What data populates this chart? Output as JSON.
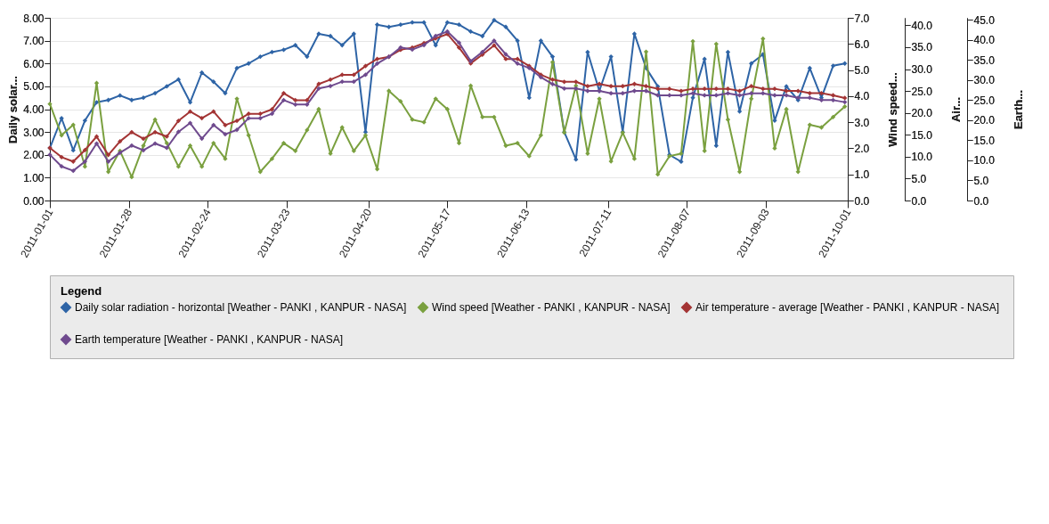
{
  "chart_data": [
    {
      "type": "line",
      "x": [
        "2011-01-01",
        "2011-01-05",
        "2011-01-09",
        "2011-01-13",
        "2011-01-17",
        "2011-01-21",
        "2011-01-25",
        "2011-01-29",
        "2011-02-02",
        "2011-02-06",
        "2011-02-10",
        "2011-02-14",
        "2011-02-18",
        "2011-02-22",
        "2011-02-26",
        "2011-03-02",
        "2011-03-06",
        "2011-03-10",
        "2011-03-14",
        "2011-03-18",
        "2011-03-22",
        "2011-03-26",
        "2011-03-30",
        "2011-04-03",
        "2011-04-07",
        "2011-04-11",
        "2011-04-15",
        "2011-04-19",
        "2011-04-23",
        "2011-04-27",
        "2011-05-01",
        "2011-05-05",
        "2011-05-09",
        "2011-05-13",
        "2011-05-17",
        "2011-05-21",
        "2011-05-25",
        "2011-05-29",
        "2011-06-02",
        "2011-06-06",
        "2011-06-10",
        "2011-06-14",
        "2011-06-18",
        "2011-06-22",
        "2011-06-26",
        "2011-06-30",
        "2011-07-04",
        "2011-07-08",
        "2011-07-12",
        "2011-07-16",
        "2011-07-20",
        "2011-07-24",
        "2011-07-28",
        "2011-08-01",
        "2011-08-05",
        "2011-08-09",
        "2011-08-13",
        "2011-08-17",
        "2011-08-21",
        "2011-08-25",
        "2011-08-29",
        "2011-09-02",
        "2011-09-06",
        "2011-09-10",
        "2011-09-14",
        "2011-09-18",
        "2011-09-22",
        "2011-09-26",
        "2011-09-30"
      ],
      "xlim": [
        "2011-01-01",
        "2011-10-01"
      ],
      "xticks": [
        "2011-01-01",
        "2011-01-28",
        "2011-02-24",
        "2011-03-23",
        "2011-04-20",
        "2011-05-17",
        "2011-06-13",
        "2011-07-11",
        "2011-08-07",
        "2011-09-03",
        "2011-10-01"
      ],
      "ylabel": "Daily solar...",
      "y2label": "Wind speed...",
      "y3label": "Air...",
      "ylim": [
        0,
        8
      ],
      "yticks": [
        {
          "value": 0,
          "label": "0.00"
        },
        {
          "value": 1,
          "label": "1.00"
        },
        {
          "value": 2,
          "label": "2.00"
        },
        {
          "value": 3,
          "label": "3.00"
        },
        {
          "value": 4,
          "label": "4.00"
        },
        {
          "value": 5,
          "label": "5.00"
        },
        {
          "value": 6,
          "label": "6.00"
        },
        {
          "value": 7,
          "label": "7.00"
        },
        {
          "value": 8,
          "label": "8.00"
        }
      ],
      "y2lim": [
        0,
        7
      ],
      "y2ticks": [
        {
          "value": 0,
          "label": "0.0"
        },
        {
          "value": 1,
          "label": "1.0"
        },
        {
          "value": 2,
          "label": "2.0"
        },
        {
          "value": 3,
          "label": "3.0"
        },
        {
          "value": 4,
          "label": "4.0"
        },
        {
          "value": 5,
          "label": "5.0"
        },
        {
          "value": 6,
          "label": "6.0"
        },
        {
          "value": 7,
          "label": "7.0"
        }
      ],
      "y3lim": [
        0,
        41.7
      ],
      "y3ticks": [
        {
          "value": 0,
          "label": "0.0"
        },
        {
          "value": 5,
          "label": "5.0"
        },
        {
          "value": 10,
          "label": "10.0"
        },
        {
          "value": 15,
          "label": "15.0"
        },
        {
          "value": 20,
          "label": "20.0"
        },
        {
          "value": 25,
          "label": "25.0"
        },
        {
          "value": 30,
          "label": "30.0"
        },
        {
          "value": 35,
          "label": "35.0"
        },
        {
          "value": 40,
          "label": "40.0"
        }
      ],
      "grid": "y",
      "legend": "bottom",
      "legend_title": "Legend",
      "marker": "diamond",
      "line_style": "solid",
      "series": [
        {
          "name": "Daily solar radiation - horizontal  [Weather - PANKI , KANPUR - NASA]",
          "color": "#2e64a6",
          "values": [
            2.3,
            3.6,
            2.2,
            3.5,
            4.3,
            4.4,
            4.6,
            4.4,
            4.5,
            4.7,
            5.0,
            5.3,
            4.3,
            5.6,
            5.2,
            4.7,
            5.8,
            6.0,
            6.3,
            6.5,
            6.6,
            6.8,
            6.3,
            7.3,
            7.2,
            6.8,
            7.3,
            3.0,
            7.7,
            7.6,
            7.7,
            7.8,
            7.8,
            6.8,
            7.8,
            7.7,
            7.4,
            7.2,
            7.9,
            7.6,
            7.0,
            4.5,
            7.0,
            6.3,
            3.0,
            1.8,
            6.5,
            4.8,
            6.3,
            3.0,
            7.3,
            5.8,
            5.0,
            2.0,
            1.7,
            4.5,
            6.2,
            2.4,
            6.5,
            3.9,
            6.0,
            6.4,
            3.5,
            5.0,
            4.4,
            5.8,
            4.5,
            5.9,
            6.0
          ]
        },
        {
          "name": "Wind speed  [Weather - PANKI , KANPUR - NASA]",
          "color": "#7aa03f",
          "axis": "y2",
          "values": [
            3.7,
            2.5,
            2.9,
            1.3,
            4.5,
            1.1,
            1.9,
            0.9,
            2.1,
            3.1,
            2.2,
            1.3,
            2.1,
            1.3,
            2.2,
            1.6,
            3.9,
            2.5,
            1.1,
            1.6,
            2.2,
            1.9,
            2.7,
            3.5,
            1.8,
            2.8,
            1.9,
            2.5,
            1.2,
            4.2,
            3.8,
            3.1,
            3.0,
            3.9,
            3.5,
            2.2,
            4.4,
            3.2,
            3.2,
            2.1,
            2.2,
            1.7,
            2.5,
            5.3,
            2.6,
            4.4,
            1.8,
            3.9,
            1.5,
            2.6,
            1.6,
            5.7,
            1.0,
            1.7,
            1.8,
            6.1,
            1.9,
            6.0,
            3.1,
            1.1,
            3.9,
            6.2,
            2.0,
            3.5,
            1.1,
            2.9,
            2.8,
            3.2,
            3.6
          ]
        },
        {
          "name": "Air temperature - average  [Weather - PANKI , KANPUR - NASA]",
          "color": "#a33434",
          "axis": "y3",
          "values": [
            12.0,
            9.9,
            8.9,
            11.5,
            14.6,
            10.4,
            13.5,
            15.6,
            14.1,
            15.6,
            14.6,
            18.2,
            20.3,
            18.8,
            20.3,
            17.2,
            18.2,
            19.8,
            19.8,
            20.8,
            24.5,
            22.9,
            22.9,
            26.6,
            27.6,
            28.7,
            28.7,
            30.7,
            32.3,
            32.8,
            34.4,
            34.9,
            35.9,
            37.0,
            38.0,
            34.9,
            31.3,
            33.3,
            35.4,
            32.3,
            32.3,
            30.7,
            28.7,
            27.6,
            27.1,
            27.1,
            26.1,
            26.6,
            26.1,
            26.1,
            26.6,
            26.1,
            25.5,
            25.5,
            25.0,
            25.5,
            25.5,
            25.5,
            25.5,
            25.0,
            26.1,
            25.5,
            25.5,
            25.0,
            25.0,
            24.5,
            24.5,
            24.0,
            23.4
          ]
        }
      ]
    },
    {
      "type": "line",
      "x": [
        "2011-01-01",
        "2011-01-05",
        "2011-01-09",
        "2011-01-13",
        "2011-01-17",
        "2011-01-21",
        "2011-01-25",
        "2011-01-29",
        "2011-02-02",
        "2011-02-06",
        "2011-02-10",
        "2011-02-14",
        "2011-02-18",
        "2011-02-22",
        "2011-02-26",
        "2011-03-02",
        "2011-03-06",
        "2011-03-10",
        "2011-03-14",
        "2011-03-18",
        "2011-03-22",
        "2011-03-26",
        "2011-03-30",
        "2011-04-03",
        "2011-04-07",
        "2011-04-11",
        "2011-04-15",
        "2011-04-19",
        "2011-04-23",
        "2011-04-27",
        "2011-05-01",
        "2011-05-05",
        "2011-05-09",
        "2011-05-13",
        "2011-05-17",
        "2011-05-21",
        "2011-05-25",
        "2011-05-29",
        "2011-06-02",
        "2011-06-06",
        "2011-06-10",
        "2011-06-14",
        "2011-06-18",
        "2011-06-22",
        "2011-06-26",
        "2011-06-30",
        "2011-07-04",
        "2011-07-08",
        "2011-07-12",
        "2011-07-16",
        "2011-07-20",
        "2011-07-24",
        "2011-07-28",
        "2011-08-01",
        "2011-08-05",
        "2011-08-09",
        "2011-08-13",
        "2011-08-17",
        "2011-08-21",
        "2011-08-25",
        "2011-08-29",
        "2011-09-02",
        "2011-09-06",
        "2011-09-10",
        "2011-09-14",
        "2011-09-18",
        "2011-09-22",
        "2011-09-26",
        "2011-09-30"
      ],
      "xlim": [
        "2011-01-01",
        "2011-10-01"
      ],
      "xticks": [
        "2011-01-01",
        "2011-01-28",
        "2011-02-24",
        "2011-03-23",
        "2011-04-20",
        "2011-05-17",
        "2011-06-13",
        "2011-07-11",
        "2011-08-07",
        "2011-09-03",
        "2011-10-01"
      ],
      "tick_labels": "y",
      "ylabel": "Earth...",
      "ylim": [
        0,
        45.5
      ],
      "yticks": [
        {
          "value": 0,
          "label": "0.0"
        },
        {
          "value": 5,
          "label": "5.0"
        },
        {
          "value": 10,
          "label": "10.0"
        },
        {
          "value": 15,
          "label": "15.0"
        },
        {
          "value": 20,
          "label": "20.0"
        },
        {
          "value": 25,
          "label": "25.0"
        },
        {
          "value": 30,
          "label": "30.0"
        },
        {
          "value": 35,
          "label": "35.0"
        },
        {
          "value": 40,
          "label": "40.0"
        },
        {
          "value": 45,
          "label": "45.0"
        }
      ],
      "legend": "bottom",
      "marker": "diamond",
      "line_style": "solid",
      "series": [
        {
          "name": "Earth temperature  [Weather - PANKI , KANPUR - NASA]",
          "color": "#6f4a8e",
          "values": [
            11.4,
            8.5,
            7.4,
            9.7,
            14.2,
            9.7,
            11.9,
            13.7,
            12.5,
            14.2,
            13.1,
            17.1,
            19.3,
            15.4,
            18.8,
            16.5,
            17.6,
            20.5,
            20.5,
            21.6,
            25.0,
            23.9,
            23.9,
            27.9,
            28.5,
            29.6,
            29.6,
            31.3,
            34.1,
            35.8,
            38.1,
            37.6,
            38.7,
            41.0,
            42.1,
            39.3,
            34.7,
            37.0,
            39.8,
            36.4,
            34.1,
            33.0,
            30.7,
            29.0,
            27.9,
            27.9,
            27.3,
            27.3,
            26.7,
            26.7,
            27.3,
            27.3,
            26.2,
            26.2,
            26.2,
            26.7,
            26.2,
            26.2,
            26.7,
            26.2,
            26.7,
            26.7,
            26.2,
            26.2,
            25.6,
            25.6,
            25.0,
            25.0,
            24.5
          ]
        }
      ]
    }
  ]
}
